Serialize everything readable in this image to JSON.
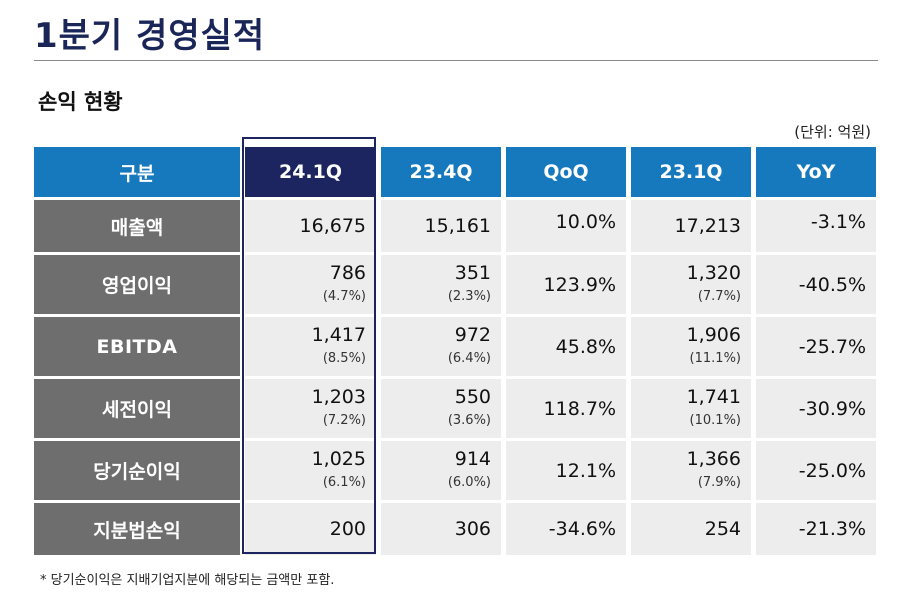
{
  "title": "1분기 경영실적",
  "subtitle": "손익 현황",
  "unit": "(단위: 억원)",
  "headers": [
    "구분",
    "24.1Q",
    "23.4Q",
    "QoQ",
    "23.1Q",
    "YoY"
  ],
  "rows": [
    {
      "label": "매출액",
      "q241": {
        "main": "16,675",
        "sub": ""
      },
      "q234": {
        "main": "15,161",
        "sub": ""
      },
      "qoq": "10.0%",
      "q231": {
        "main": "17,213",
        "sub": ""
      },
      "yoy": "-3.1%"
    },
    {
      "label": "영업이익",
      "q241": {
        "main": "786",
        "sub": "(4.7%)"
      },
      "q234": {
        "main": "351",
        "sub": "(2.3%)"
      },
      "qoq": "123.9%",
      "q231": {
        "main": "1,320",
        "sub": "(7.7%)"
      },
      "yoy": "-40.5%"
    },
    {
      "label": "EBITDA",
      "q241": {
        "main": "1,417",
        "sub": "(8.5%)"
      },
      "q234": {
        "main": "972",
        "sub": "(6.4%)"
      },
      "qoq": "45.8%",
      "q231": {
        "main": "1,906",
        "sub": "(11.1%)"
      },
      "yoy": "-25.7%"
    },
    {
      "label": "세전이익",
      "q241": {
        "main": "1,203",
        "sub": "(7.2%)"
      },
      "q234": {
        "main": "550",
        "sub": "(3.6%)"
      },
      "qoq": "118.7%",
      "q231": {
        "main": "1,741",
        "sub": "(10.1%)"
      },
      "yoy": "-30.9%"
    },
    {
      "label": "당기순이익",
      "q241": {
        "main": "1,025",
        "sub": "(6.1%)"
      },
      "q234": {
        "main": "914",
        "sub": "(6.0%)"
      },
      "qoq": "12.1%",
      "q231": {
        "main": "1,366",
        "sub": "(7.9%)"
      },
      "yoy": "-25.0%"
    },
    {
      "label": "지분법손익",
      "q241": {
        "main": "200",
        "sub": ""
      },
      "q234": {
        "main": "306",
        "sub": ""
      },
      "qoq": "-34.6%",
      "q231": {
        "main": "254",
        "sub": ""
      },
      "yoy": "-21.3%"
    }
  ],
  "footnote": "* 당기순이익은 지배기업지분에 해당되는 금액만 포함.",
  "colors": {
    "header_blue": "#1779bd",
    "header_highlight": "#1c2560",
    "row_head_gray": "#6e6e6e",
    "cell_bg": "#ededed",
    "title_navy": "#1a2658"
  }
}
